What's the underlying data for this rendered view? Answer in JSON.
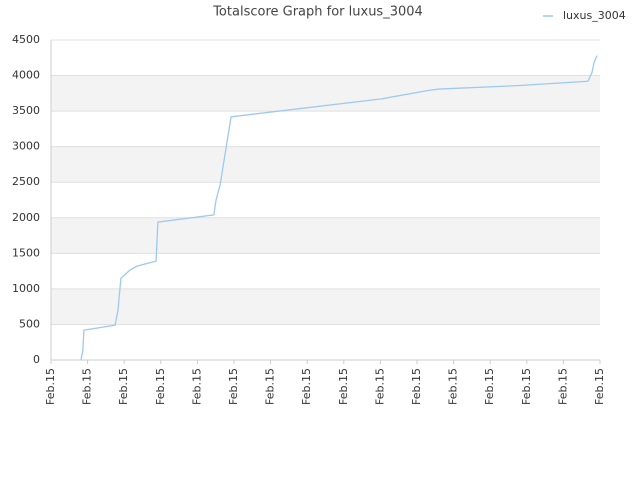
{
  "chart_data": {
    "type": "line",
    "title": "Totalscore Graph for luxus_3004",
    "x": [
      0.82,
      0.87,
      0.9,
      1.75,
      1.83,
      1.91,
      2.16,
      2.35,
      2.87,
      2.92,
      4.45,
      4.51,
      4.62,
      4.92,
      9.0,
      10.3,
      10.6,
      12.8,
      14.67,
      14.78,
      14.84,
      14.92
    ],
    "series": [
      {
        "name": "luxus_3004",
        "color": "#9ec9ef",
        "values": [
          0,
          140,
          420,
          490,
          700,
          1150,
          1265,
          1320,
          1390,
          1940,
          2040,
          2250,
          2460,
          3420,
          3670,
          3790,
          3810,
          3860,
          3920,
          4040,
          4190,
          4280
        ]
      }
    ],
    "xlim": [
      0,
      15
    ],
    "xticks": [
      {
        "value": 0,
        "label": "Feb.15"
      },
      {
        "value": 1,
        "label": "Feb.15"
      },
      {
        "value": 2,
        "label": "Feb.15"
      },
      {
        "value": 3,
        "label": "Feb.15"
      },
      {
        "value": 4,
        "label": "Feb.15"
      },
      {
        "value": 5,
        "label": "Feb.15"
      },
      {
        "value": 6,
        "label": "Feb.15"
      },
      {
        "value": 7,
        "label": "Feb.15"
      },
      {
        "value": 8,
        "label": "Feb.15"
      },
      {
        "value": 9,
        "label": "Feb.15"
      },
      {
        "value": 10,
        "label": "Feb.15"
      },
      {
        "value": 11,
        "label": "Feb.15"
      },
      {
        "value": 12,
        "label": "Feb.15"
      },
      {
        "value": 13,
        "label": "Feb.15"
      },
      {
        "value": 14,
        "label": "Feb.15"
      },
      {
        "value": 15,
        "label": "Feb.15"
      }
    ],
    "ylim": [
      0,
      4500
    ],
    "yticks": [
      0,
      500,
      1000,
      1500,
      2000,
      2500,
      3000,
      3500,
      4000,
      4500
    ],
    "grid": true,
    "legend": "top-right"
  }
}
